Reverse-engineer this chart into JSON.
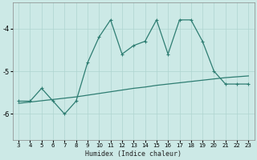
{
  "xlabel": "Humidex (Indice chaleur)",
  "x_values": [
    3,
    4,
    5,
    6,
    7,
    8,
    9,
    10,
    11,
    12,
    13,
    14,
    15,
    16,
    17,
    18,
    19,
    20,
    21,
    22,
    23
  ],
  "y_main": [
    -5.7,
    -5.7,
    -5.4,
    -5.7,
    -6.0,
    -5.7,
    -4.8,
    -4.2,
    -3.8,
    -4.6,
    -4.4,
    -4.3,
    -3.8,
    -4.6,
    -3.8,
    -3.8,
    -4.3,
    -5.0,
    -5.3,
    -5.3,
    -5.3
  ],
  "y_trend": [
    -5.75,
    -5.72,
    -5.69,
    -5.66,
    -5.63,
    -5.6,
    -5.56,
    -5.52,
    -5.48,
    -5.44,
    -5.4,
    -5.37,
    -5.33,
    -5.3,
    -5.27,
    -5.24,
    -5.21,
    -5.18,
    -5.15,
    -5.13,
    -5.11
  ],
  "line_color": "#2e7d72",
  "bg_color": "#cce9e6",
  "grid_color": "#aed4d0",
  "ylim": [
    -6.6,
    -3.4
  ],
  "yticks": [
    -6,
    -5
  ],
  "ytick_top": -4,
  "xlim": [
    2.5,
    23.5
  ]
}
